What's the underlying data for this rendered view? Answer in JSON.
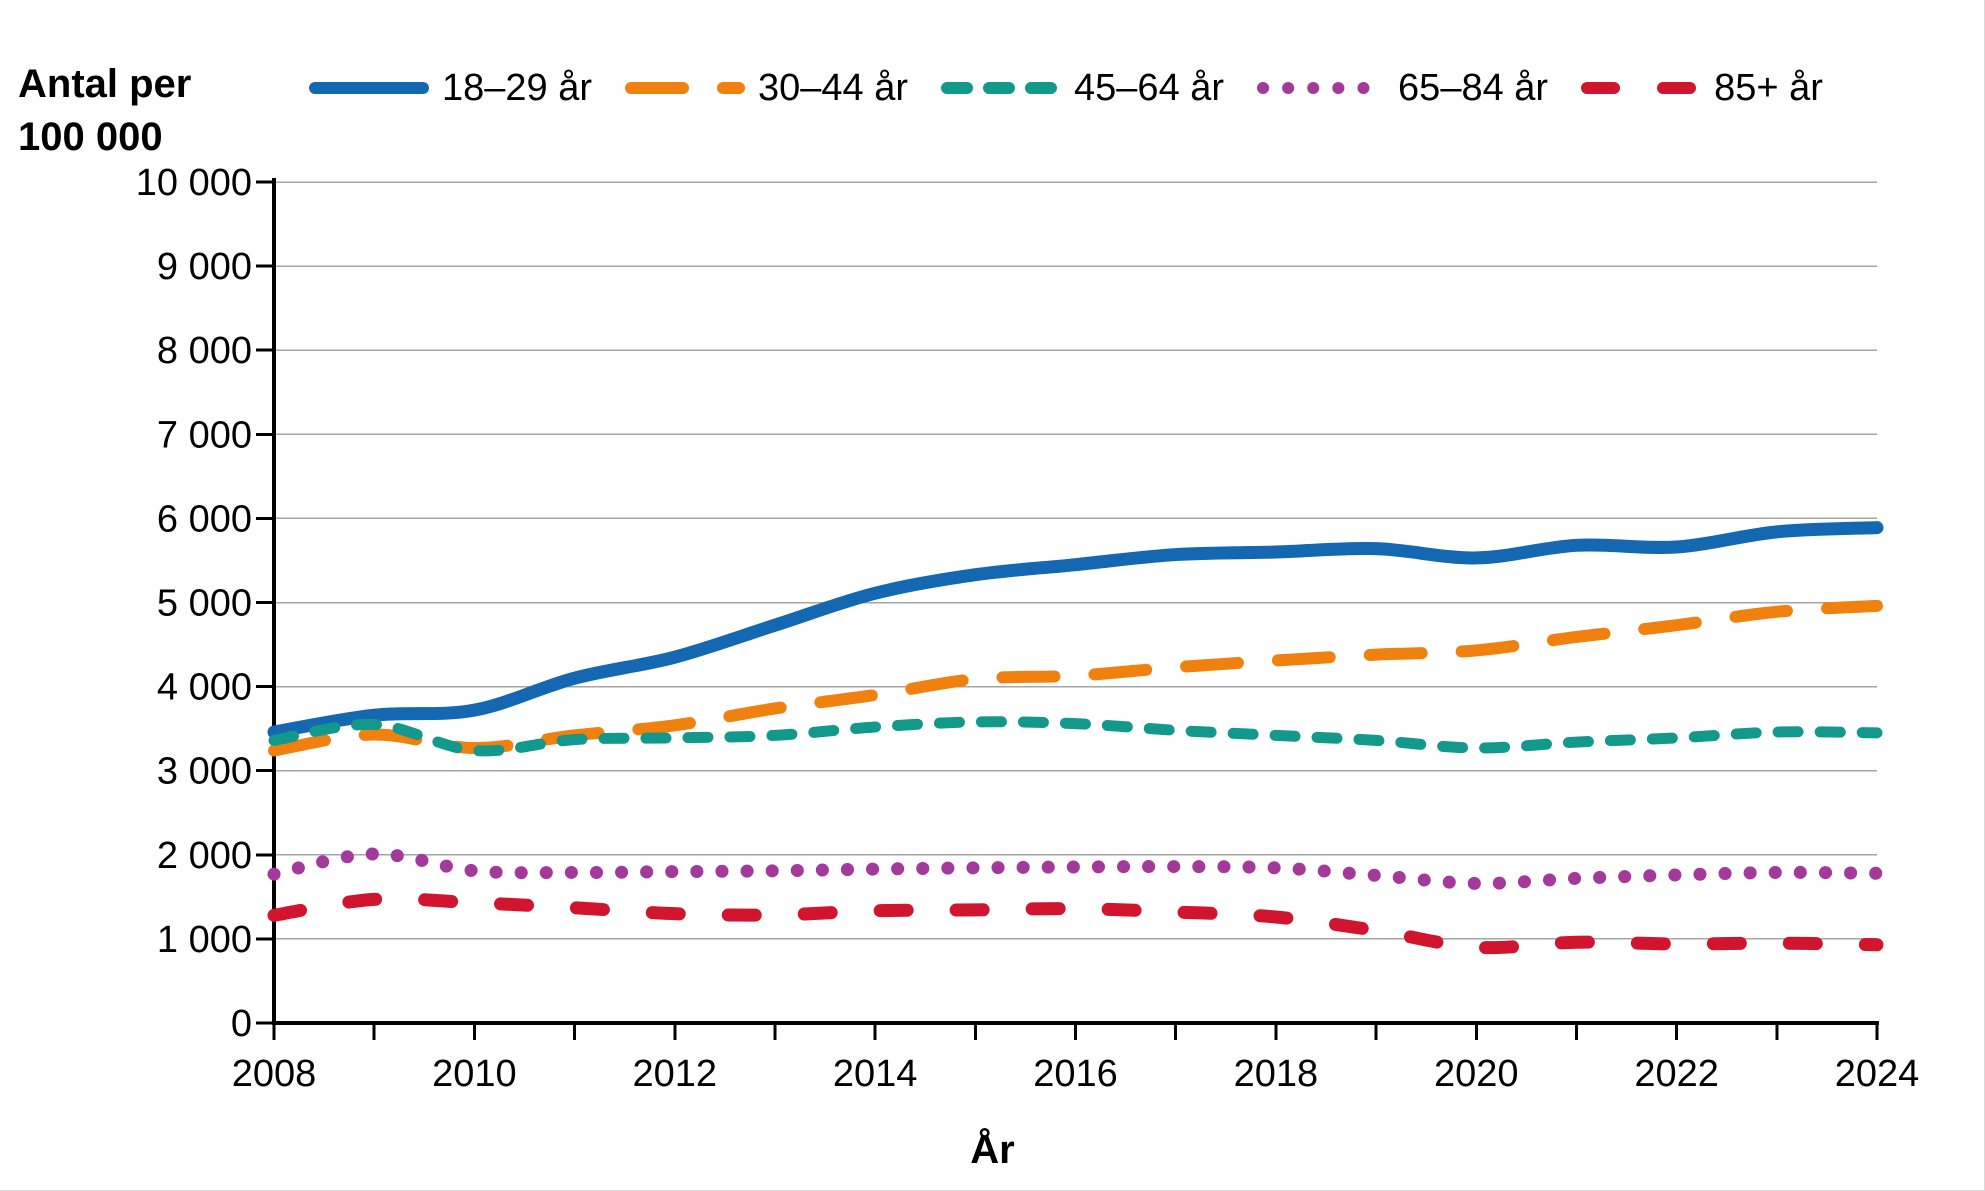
{
  "chart_data": {
    "type": "line",
    "title": "Antal per 100 000",
    "title_lines": [
      "Antal per",
      "100 000"
    ],
    "xlabel": "År",
    "x": [
      2008,
      2009,
      2010,
      2011,
      2012,
      2013,
      2014,
      2015,
      2016,
      2017,
      2018,
      2019,
      2020,
      2021,
      2022,
      2023,
      2024
    ],
    "x_labeled_ticks": [
      2008,
      2010,
      2012,
      2014,
      2016,
      2018,
      2020,
      2022,
      2024
    ],
    "ylim": [
      0,
      10000
    ],
    "ytick_step": 1000,
    "grid": "horizontal-gray",
    "legend_position": "top-center",
    "axis_color": "#000000",
    "gridline_color": "#a6a6a6",
    "series": [
      {
        "name": "18–29 år",
        "color": "#1368B1",
        "style": "solid",
        "values": [
          3460,
          3660,
          3720,
          4100,
          4350,
          4730,
          5110,
          5330,
          5450,
          5570,
          5600,
          5640,
          5530,
          5680,
          5660,
          5840,
          5890
        ]
      },
      {
        "name": "30–44 år",
        "color": "#F0810F",
        "style": "long-dash",
        "values": [
          3240,
          3430,
          3270,
          3420,
          3540,
          3740,
          3900,
          4090,
          4130,
          4230,
          4310,
          4380,
          4430,
          4590,
          4730,
          4890,
          4960
        ]
      },
      {
        "name": "45–64 år",
        "color": "#12998C",
        "style": "dash",
        "values": [
          3360,
          3550,
          3240,
          3370,
          3390,
          3420,
          3520,
          3580,
          3560,
          3480,
          3420,
          3360,
          3270,
          3340,
          3390,
          3460,
          3450
        ]
      },
      {
        "name": "65–84 år",
        "color": "#A2399B",
        "style": "dot",
        "values": [
          1770,
          2010,
          1810,
          1790,
          1800,
          1810,
          1830,
          1845,
          1855,
          1860,
          1845,
          1755,
          1660,
          1720,
          1760,
          1790,
          1780
        ]
      },
      {
        "name": "85+ år",
        "color": "#D2152E",
        "style": "wide-dash",
        "values": [
          1280,
          1470,
          1430,
          1370,
          1300,
          1285,
          1335,
          1345,
          1360,
          1320,
          1260,
          1100,
          900,
          960,
          940,
          950,
          930
        ]
      }
    ]
  }
}
